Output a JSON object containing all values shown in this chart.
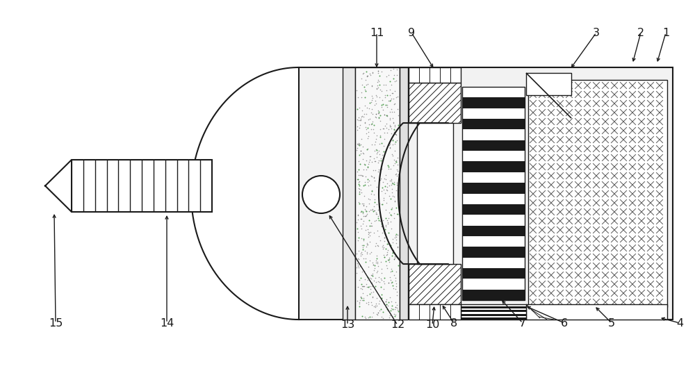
{
  "bg_color": "#ffffff",
  "lc": "#1a1a1a",
  "figsize": [
    10.0,
    5.47
  ],
  "dpi": 100
}
